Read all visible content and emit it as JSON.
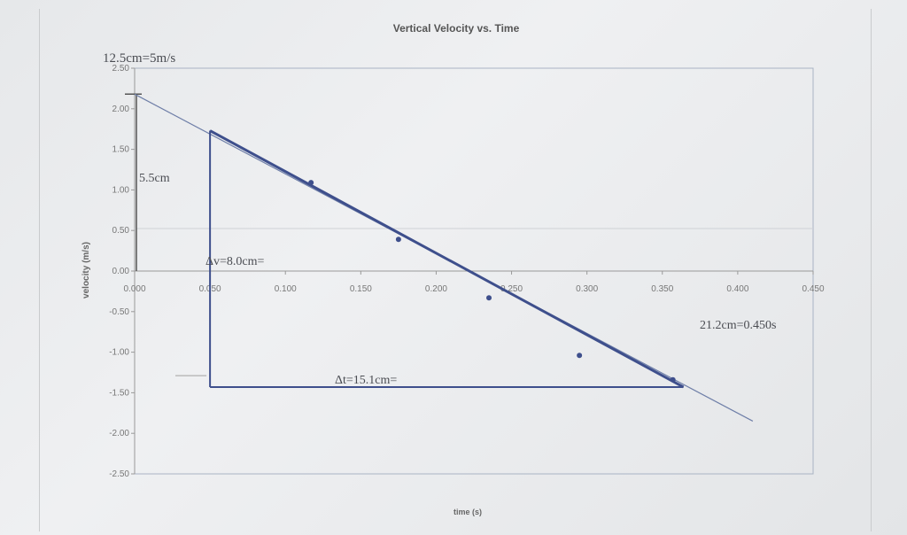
{
  "chart_data": {
    "type": "scatter",
    "title": "Vertical Velocity vs. Time",
    "xlabel": "time (s)",
    "ylabel": "velocity (m/s)",
    "xlim": [
      0,
      0.45
    ],
    "ylim": [
      -2.5,
      2.5
    ],
    "x_ticks": [
      0,
      0.05,
      0.1,
      0.15,
      0.2,
      0.25,
      0.3,
      0.35,
      0.4,
      0.45
    ],
    "x_tick_labels": [
      "0.000",
      "0.050",
      "0.100",
      "0.150",
      "0.200",
      "0.250",
      "0.300",
      "0.350",
      "0.400",
      "0.450"
    ],
    "y_ticks": [
      2.5,
      2.0,
      1.5,
      1.0,
      0.5,
      0.0,
      -0.5,
      -1.0,
      -1.5,
      -2.0,
      -2.5
    ],
    "y_tick_labels": [
      "2.50",
      "2.00",
      "1.50",
      "1.00",
      "0.50",
      "0.00",
      "-0.50",
      "-1.00",
      "-1.50",
      "-2.00",
      "-2.50"
    ],
    "grid": false,
    "points": [
      {
        "x": 0.117,
        "y": 1.09
      },
      {
        "x": 0.175,
        "y": 0.39
      },
      {
        "x": 0.235,
        "y": -0.33
      },
      {
        "x": 0.295,
        "y": -1.04
      },
      {
        "x": 0.357,
        "y": -1.34
      }
    ],
    "fit_line": [
      {
        "x": 0.0,
        "y": 2.18
      },
      {
        "x": 0.41,
        "y": -1.85
      }
    ],
    "annotations": {
      "scale": "12.5cm=5m/s",
      "dv_height": "5.5cm",
      "dv": "Δv=8.0cm=",
      "dt": "Δt=15.1cm=",
      "time_scale": "21.2cm=0.450s"
    },
    "triangle": {
      "x_start": 0.05,
      "x_end": 0.364,
      "y_top": 1.73,
      "y_bottom": -1.43
    },
    "colors": {
      "line": "#3e4f8c",
      "fit": "#6f7fa8",
      "axis": "#999999",
      "border": "#a9b3c4",
      "text": "#555555"
    }
  }
}
